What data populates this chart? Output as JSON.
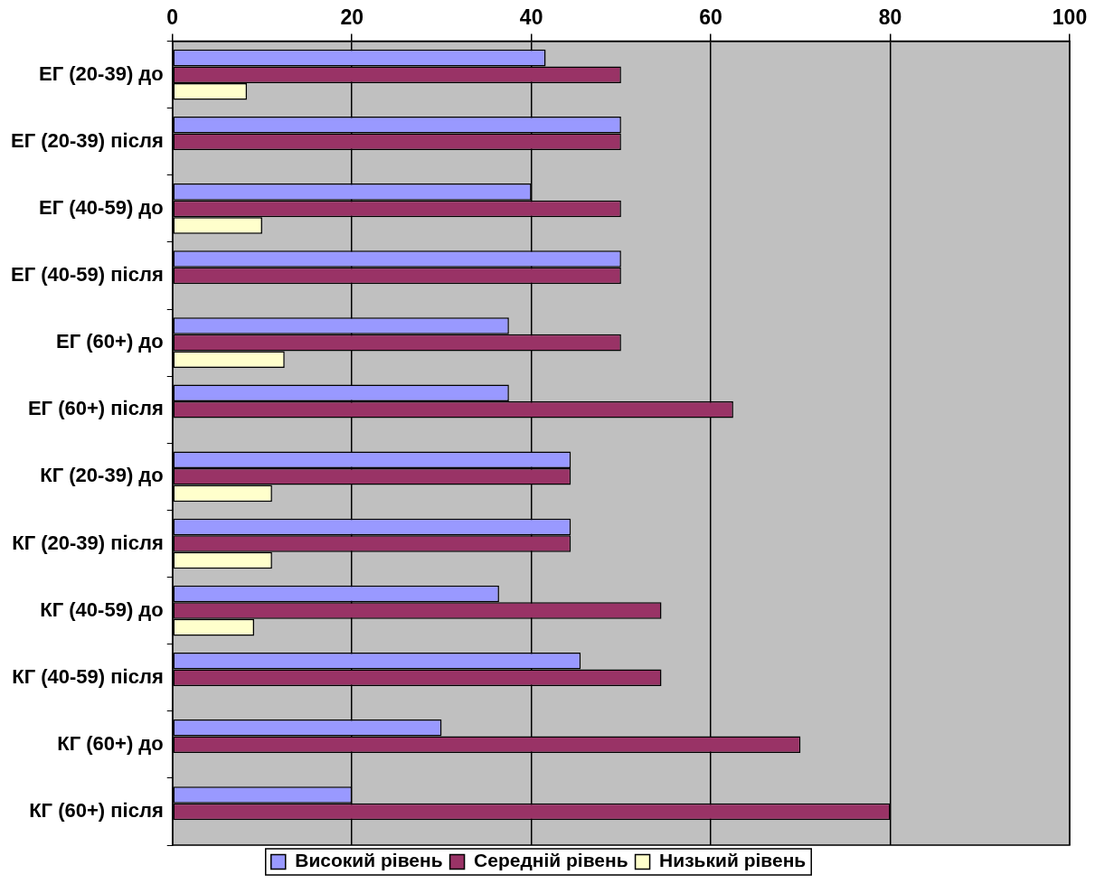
{
  "chart_data": {
    "type": "bar",
    "orientation": "horizontal",
    "categories": [
      "ЕГ (20-39) до",
      "ЕГ (20-39) після",
      "ЕГ (40-59) до",
      "ЕГ (40-59) після",
      "ЕГ (60+) до",
      "ЕГ (60+) після",
      "КГ (20-39) до",
      "КГ (20-39) після",
      "КГ (40-59) до",
      "КГ (40-59) після",
      "КГ (60+) до",
      "КГ (60+) після"
    ],
    "series": [
      {
        "name": "Високий рівень",
        "color": "#9999ff",
        "values": [
          41.6,
          50,
          40,
          50,
          37.5,
          37.5,
          44.4,
          44.4,
          36.4,
          45.5,
          30,
          20
        ]
      },
      {
        "name": "Середній рівень",
        "color": "#993366",
        "values": [
          50,
          50,
          50,
          50,
          50,
          62.5,
          44.4,
          44.4,
          54.5,
          54.5,
          70,
          80
        ]
      },
      {
        "name": "Низький рівень",
        "color": "#ffffcc",
        "values": [
          8.3,
          null,
          10,
          null,
          12.5,
          null,
          11.1,
          11.1,
          9.1,
          null,
          null,
          null
        ]
      }
    ],
    "xlim": [
      0,
      100
    ],
    "xticks": [
      0,
      20,
      40,
      60,
      80,
      100
    ],
    "grid": "x",
    "legend": "bottom"
  }
}
